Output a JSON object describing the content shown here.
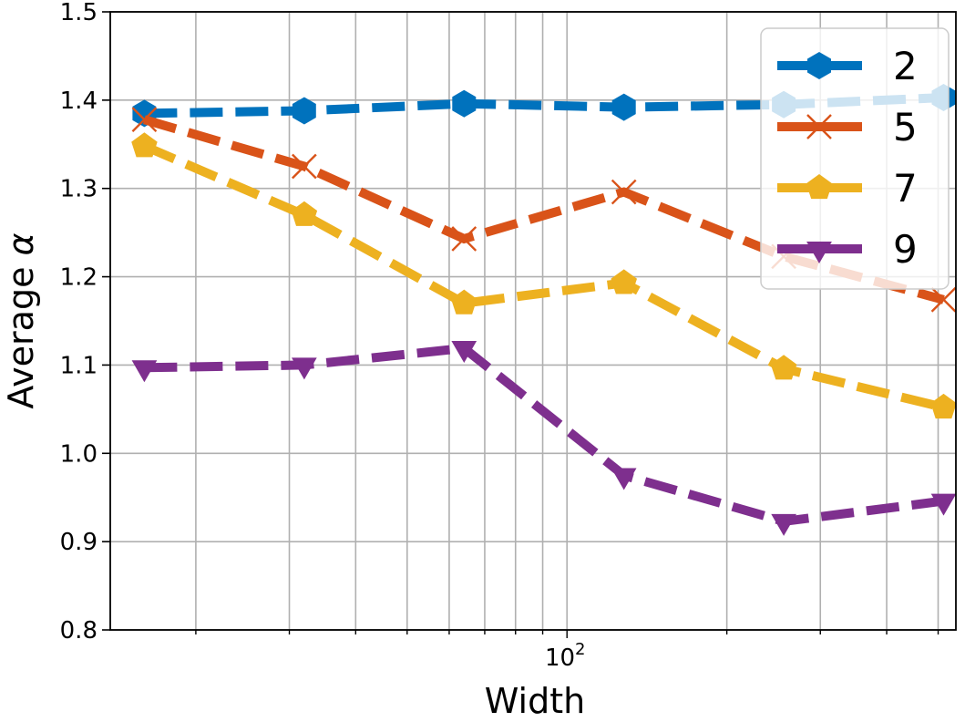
{
  "chart_data": {
    "type": "line",
    "xscale": "log",
    "x": [
      16,
      32,
      64,
      128,
      256,
      512
    ],
    "series": [
      {
        "name": "2",
        "marker": "hexagon",
        "color": "#0072BD",
        "values": [
          1.385,
          1.388,
          1.396,
          1.392,
          1.395,
          1.403
        ]
      },
      {
        "name": "5",
        "marker": "x",
        "color": "#D95319",
        "values": [
          1.378,
          1.325,
          1.243,
          1.296,
          1.223,
          1.174
        ]
      },
      {
        "name": "7",
        "marker": "pentagon",
        "color": "#EDB120",
        "values": [
          1.348,
          1.27,
          1.17,
          1.193,
          1.096,
          1.052
        ]
      },
      {
        "name": "9",
        "marker": "triangle-down",
        "color": "#7E2F8E",
        "values": [
          1.097,
          1.1,
          1.119,
          0.975,
          0.923,
          0.946
        ]
      }
    ],
    "title": "",
    "xlabel": "Width",
    "ylabel": "Average α",
    "xlim": [
      13.8,
      540
    ],
    "ylim": [
      0.8,
      1.5
    ],
    "yticks": [
      "0.8",
      "0.9",
      "1.0",
      "1.1",
      "1.2",
      "1.3",
      "1.4",
      "1.5"
    ],
    "xticks": [
      {
        "value": 100,
        "label": "10",
        "exp": "2"
      }
    ],
    "grid": true,
    "legend": "top-right"
  }
}
